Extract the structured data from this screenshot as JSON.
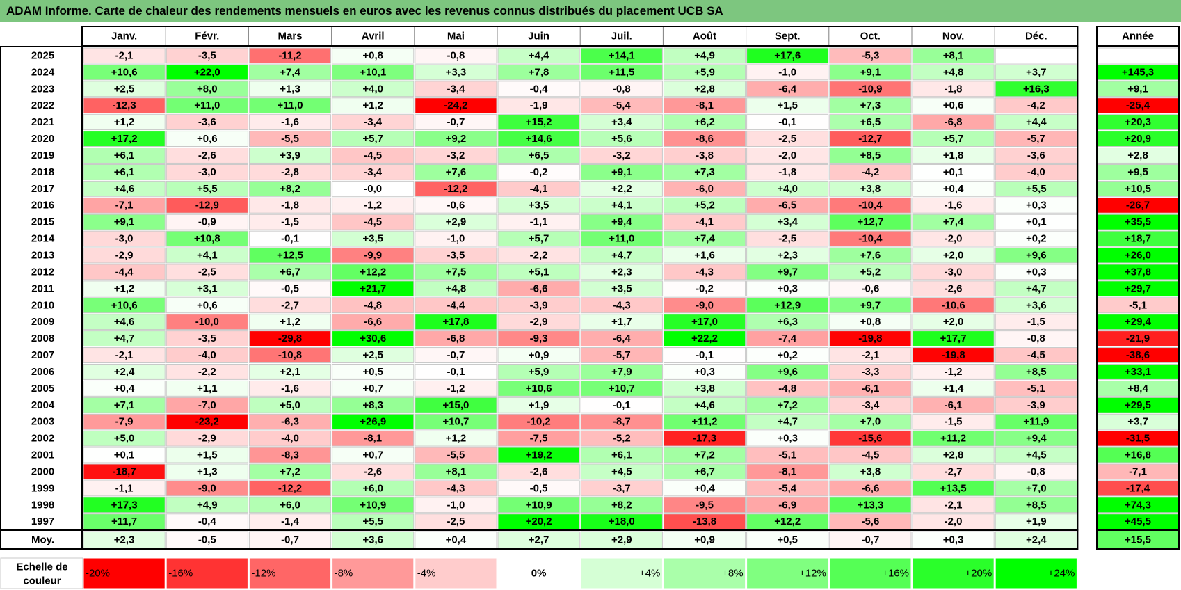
{
  "title": "ADAM Informe. Carte de chaleur des rendements mensuels en euros avec les revenus connus distribués du placement UCB SA",
  "chart_data": {
    "type": "heatmap",
    "title": "ADAM Informe. Carte de chaleur des rendements mensuels en euros avec les revenus connus distribués du placement UCB SA",
    "columns": [
      "Janv.",
      "Févr.",
      "Mars",
      "Avril",
      "Mai",
      "Juin",
      "Juil.",
      "Août",
      "Sept.",
      "Oct.",
      "Nov.",
      "Déc."
    ],
    "year_header": "Année",
    "rows": [
      {
        "year": "2025",
        "months": [
          "-2,1",
          "-3,5",
          "-11,2",
          "+0,8",
          "-0,8",
          "+4,4",
          "+14,1",
          "+4,9",
          "+17,6",
          "-5,3",
          "+8,1",
          ""
        ],
        "annual": ""
      },
      {
        "year": "2024",
        "months": [
          "+10,6",
          "+22,0",
          "+7,4",
          "+10,1",
          "+3,3",
          "+7,8",
          "+11,5",
          "+5,9",
          "-1,0",
          "+9,1",
          "+4,8",
          "+3,7"
        ],
        "annual": "+145,3"
      },
      {
        "year": "2023",
        "months": [
          "+2,5",
          "+8,0",
          "+1,3",
          "+4,0",
          "-3,4",
          "-0,4",
          "-0,8",
          "+2,8",
          "-6,4",
          "-10,9",
          "-1,8",
          "+16,3"
        ],
        "annual": "+9,1"
      },
      {
        "year": "2022",
        "months": [
          "-12,3",
          "+11,0",
          "+11,0",
          "+1,2",
          "-24,2",
          "-1,9",
          "-5,4",
          "-8,1",
          "+1,5",
          "+7,3",
          "+0,6",
          "-4,2"
        ],
        "annual": "-25,4"
      },
      {
        "year": "2021",
        "months": [
          "+1,2",
          "-3,6",
          "-1,6",
          "-3,4",
          "-0,7",
          "+15,2",
          "+3,4",
          "+6,2",
          "-0,1",
          "+6,5",
          "-6,8",
          "+4,4"
        ],
        "annual": "+20,3"
      },
      {
        "year": "2020",
        "months": [
          "+17,2",
          "+0,6",
          "-5,5",
          "+5,7",
          "+9,2",
          "+14,6",
          "+5,6",
          "-8,6",
          "-2,5",
          "-12,7",
          "+5,7",
          "-5,7"
        ],
        "annual": "+20,9"
      },
      {
        "year": "2019",
        "months": [
          "+6,1",
          "-2,6",
          "+3,9",
          "-4,5",
          "-3,2",
          "+6,5",
          "-3,2",
          "-3,8",
          "-2,0",
          "+8,5",
          "+1,8",
          "-3,6"
        ],
        "annual": "+2,8"
      },
      {
        "year": "2018",
        "months": [
          "+6,1",
          "-3,0",
          "-2,8",
          "-3,4",
          "+7,6",
          "-0,2",
          "+9,1",
          "+7,3",
          "-1,8",
          "-4,2",
          "+0,1",
          "-4,0"
        ],
        "annual": "+9,5"
      },
      {
        "year": "2017",
        "months": [
          "+4,6",
          "+5,5",
          "+8,2",
          "-0,0",
          "-12,2",
          "-4,1",
          "+2,2",
          "-6,0",
          "+4,0",
          "+3,8",
          "+0,4",
          "+5,5"
        ],
        "annual": "+10,5"
      },
      {
        "year": "2016",
        "months": [
          "-7,1",
          "-12,9",
          "-1,8",
          "-1,2",
          "-0,6",
          "+3,5",
          "+4,1",
          "+5,2",
          "-6,5",
          "-10,4",
          "-1,6",
          "+0,3"
        ],
        "annual": "-26,7"
      },
      {
        "year": "2015",
        "months": [
          "+9,1",
          "-0,9",
          "-1,5",
          "-4,5",
          "+2,9",
          "-1,1",
          "+9,4",
          "-4,1",
          "+3,4",
          "+12,7",
          "+7,4",
          "+0,1"
        ],
        "annual": "+35,5"
      },
      {
        "year": "2014",
        "months": [
          "-3,0",
          "+10,8",
          "-0,1",
          "+3,5",
          "-1,0",
          "+5,7",
          "+11,0",
          "+7,4",
          "-2,5",
          "-10,4",
          "-2,0",
          "+0,2"
        ],
        "annual": "+18,7"
      },
      {
        "year": "2013",
        "months": [
          "-2,9",
          "+4,1",
          "+12,5",
          "-9,9",
          "-3,5",
          "-2,2",
          "+4,7",
          "+1,6",
          "+2,3",
          "+7,6",
          "+2,0",
          "+9,6"
        ],
        "annual": "+26,0"
      },
      {
        "year": "2012",
        "months": [
          "-4,4",
          "-2,5",
          "+6,7",
          "+12,2",
          "+7,5",
          "+5,1",
          "+2,3",
          "-4,3",
          "+9,7",
          "+5,2",
          "-3,0",
          "+0,3"
        ],
        "annual": "+37,8"
      },
      {
        "year": "2011",
        "months": [
          "+1,2",
          "+3,1",
          "-0,5",
          "+21,7",
          "+4,8",
          "-6,6",
          "+3,5",
          "-0,2",
          "+0,3",
          "-0,6",
          "-2,6",
          "+4,7"
        ],
        "annual": "+29,7"
      },
      {
        "year": "2010",
        "months": [
          "+10,6",
          "+0,6",
          "-2,7",
          "-4,8",
          "-4,4",
          "-3,9",
          "-4,3",
          "-9,0",
          "+12,9",
          "+9,7",
          "-10,6",
          "+3,6"
        ],
        "annual": "-5,1"
      },
      {
        "year": "2009",
        "months": [
          "+4,6",
          "-10,0",
          "+1,2",
          "-6,6",
          "+17,8",
          "-2,9",
          "+1,7",
          "+17,0",
          "+6,3",
          "+0,8",
          "+2,0",
          "-1,5"
        ],
        "annual": "+29,4"
      },
      {
        "year": "2008",
        "months": [
          "+4,7",
          "-3,5",
          "-29,8",
          "+30,6",
          "-6,8",
          "-9,3",
          "-6,4",
          "+22,2",
          "-7,4",
          "-19,8",
          "+17,7",
          "-0,8"
        ],
        "annual": "-21,9"
      },
      {
        "year": "2007",
        "months": [
          "-2,1",
          "-4,0",
          "-10,8",
          "+2,5",
          "-0,7",
          "+0,9",
          "-5,7",
          "-0,1",
          "+0,2",
          "-2,1",
          "-19,8",
          "-4,5"
        ],
        "annual": "-38,6"
      },
      {
        "year": "2006",
        "months": [
          "+2,4",
          "-2,2",
          "+2,1",
          "+0,5",
          "-0,1",
          "+5,9",
          "+7,9",
          "+0,3",
          "+9,6",
          "-3,3",
          "-1,2",
          "+8,5"
        ],
        "annual": "+33,1"
      },
      {
        "year": "2005",
        "months": [
          "+0,4",
          "+1,1",
          "-1,6",
          "+0,7",
          "-1,2",
          "+10,6",
          "+10,7",
          "+3,8",
          "-4,8",
          "-6,1",
          "+1,4",
          "-5,1"
        ],
        "annual": "+8,4"
      },
      {
        "year": "2004",
        "months": [
          "+7,1",
          "-7,0",
          "+5,0",
          "+8,3",
          "+15,0",
          "+1,9",
          "-0,1",
          "+4,6",
          "+7,2",
          "-3,4",
          "-6,1",
          "-3,9"
        ],
        "annual": "+29,5"
      },
      {
        "year": "2003",
        "months": [
          "-7,9",
          "-23,2",
          "-6,3",
          "+26,9",
          "+10,7",
          "-10,2",
          "-8,7",
          "+11,2",
          "+4,7",
          "+7,0",
          "-1,5",
          "+11,9"
        ],
        "annual": "+3,7"
      },
      {
        "year": "2002",
        "months": [
          "+5,0",
          "-2,9",
          "-4,0",
          "-8,1",
          "+1,2",
          "-7,5",
          "-5,2",
          "-17,3",
          "+0,3",
          "-15,6",
          "+11,2",
          "+9,4"
        ],
        "annual": "-31,5"
      },
      {
        "year": "2001",
        "months": [
          "+0,1",
          "+1,5",
          "-8,3",
          "+0,7",
          "-5,5",
          "+19,2",
          "+6,1",
          "+7,2",
          "-5,1",
          "-4,5",
          "+2,8",
          "+4,5"
        ],
        "annual": "+16,8"
      },
      {
        "year": "2000",
        "months": [
          "-18,7",
          "+1,3",
          "+7,2",
          "-2,6",
          "+8,1",
          "-2,6",
          "+4,5",
          "+6,7",
          "-8,1",
          "+3,8",
          "-2,7",
          "-0,8"
        ],
        "annual": "-7,1"
      },
      {
        "year": "1999",
        "months": [
          "-1,1",
          "-9,0",
          "-12,2",
          "+6,0",
          "-4,3",
          "-0,5",
          "-3,7",
          "+0,4",
          "-5,4",
          "-6,6",
          "+13,5",
          "+7,0"
        ],
        "annual": "-17,4"
      },
      {
        "year": "1998",
        "months": [
          "+17,3",
          "+4,9",
          "+6,0",
          "+10,9",
          "-1,0",
          "+10,9",
          "+8,2",
          "-9,5",
          "-6,9",
          "+13,3",
          "-2,1",
          "+8,5"
        ],
        "annual": "+74,3"
      },
      {
        "year": "1997",
        "months": [
          "+11,7",
          "-0,4",
          "-1,4",
          "+5,5",
          "-2,5",
          "+20,2",
          "+18,0",
          "-13,8",
          "+12,2",
          "-5,6",
          "-2,0",
          "+1,9"
        ],
        "annual": "+45,5"
      }
    ],
    "average_row": {
      "label": "Moy.",
      "months": [
        "+2,3",
        "-0,5",
        "-0,7",
        "+3,6",
        "+0,4",
        "+2,7",
        "+2,9",
        "+0,9",
        "+0,5",
        "-0,7",
        "+0,3",
        "+2,4"
      ],
      "annual": "+15,5"
    },
    "color_scale": {
      "label": "Echelle de couleur",
      "stops": [
        "-20%",
        "-16%",
        "-12%",
        "-8%",
        "-4%",
        "0%",
        "+4%",
        "+8%",
        "+12%",
        "+16%",
        "+20%",
        "+24%"
      ]
    },
    "colors": {
      "negative_max": "#ff0000",
      "neutral": "#ffffff",
      "positive_max": "#00ff00",
      "title_bg": "#7dc67f"
    }
  }
}
